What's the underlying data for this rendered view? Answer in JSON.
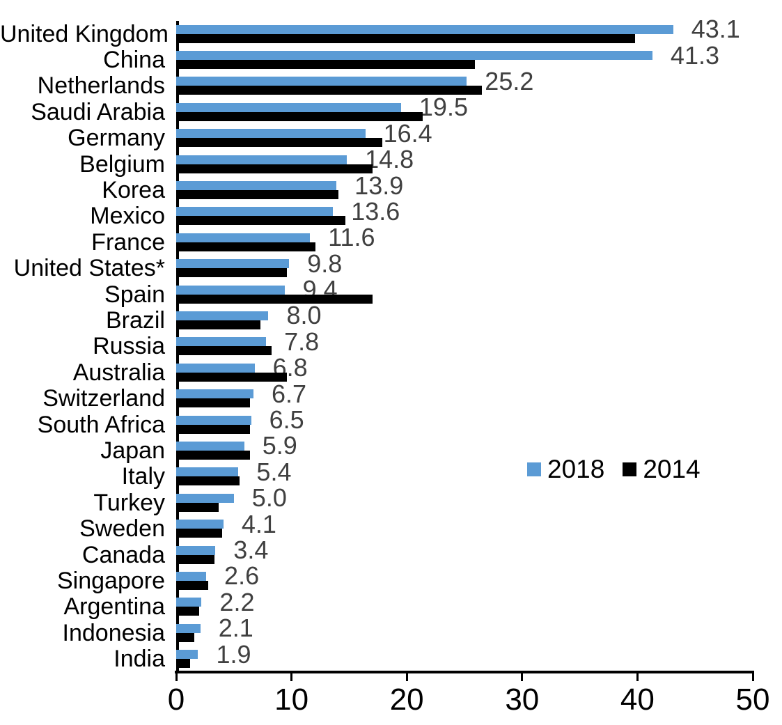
{
  "chart_data": {
    "type": "bar",
    "orientation": "horizontal",
    "title": "",
    "categories": [
      "United Kingdom",
      "China",
      "Netherlands",
      "Saudi Arabia",
      "Germany",
      "Belgium",
      "Korea",
      "Mexico",
      "France",
      "United States*",
      "Spain",
      "Brazil",
      "Russia",
      "Australia",
      "Switzerland",
      "South Africa",
      "Japan",
      "Italy",
      "Turkey",
      "Sweden",
      "Canada",
      "Singapore",
      "Argentina",
      "Indonesia",
      "India"
    ],
    "series": [
      {
        "name": "2018",
        "color": "#5B9BD5",
        "values": [
          43.1,
          41.3,
          25.2,
          19.5,
          16.4,
          14.8,
          13.9,
          13.6,
          11.6,
          9.8,
          9.4,
          8.0,
          7.8,
          6.8,
          6.7,
          6.5,
          5.9,
          5.4,
          5.0,
          4.1,
          3.4,
          2.6,
          2.2,
          2.1,
          1.9
        ]
      },
      {
        "name": "2014",
        "color": "#000000",
        "values": [
          39.8,
          25.9,
          26.5,
          21.4,
          17.9,
          17.0,
          14.1,
          14.7,
          12.1,
          9.6,
          17.0,
          7.3,
          8.3,
          9.6,
          6.4,
          6.4,
          6.4,
          5.5,
          3.7,
          4.0,
          3.3,
          2.8,
          2.0,
          1.6,
          1.2
        ]
      }
    ],
    "data_labels": {
      "on_series": "2018",
      "labels": [
        "43.1",
        "41.3",
        "25.2",
        "19.5",
        "16.4",
        "14.8",
        "13.9",
        "13.6",
        "11.6",
        "9.8",
        "9.4",
        "8.0",
        "7.8",
        "6.8",
        "6.7",
        "6.5",
        "5.9",
        "5.4",
        "5.0",
        "4.1",
        "3.4",
        "2.6",
        "2.2",
        "2.1",
        "1.9"
      ],
      "color": "#404040"
    },
    "xlabel": "",
    "ylabel": "",
    "xlim": [
      0,
      50
    ],
    "xticks": [
      "0",
      "10",
      "20",
      "30",
      "40",
      "50"
    ],
    "grid": false,
    "legend": {
      "position": "inside-middle-right",
      "items": [
        "2018",
        "2014"
      ]
    }
  },
  "colors": {
    "bar_2018": "#5B9BD5",
    "bar_2014": "#000000",
    "value_label": "#404040",
    "axis": "#000000"
  }
}
